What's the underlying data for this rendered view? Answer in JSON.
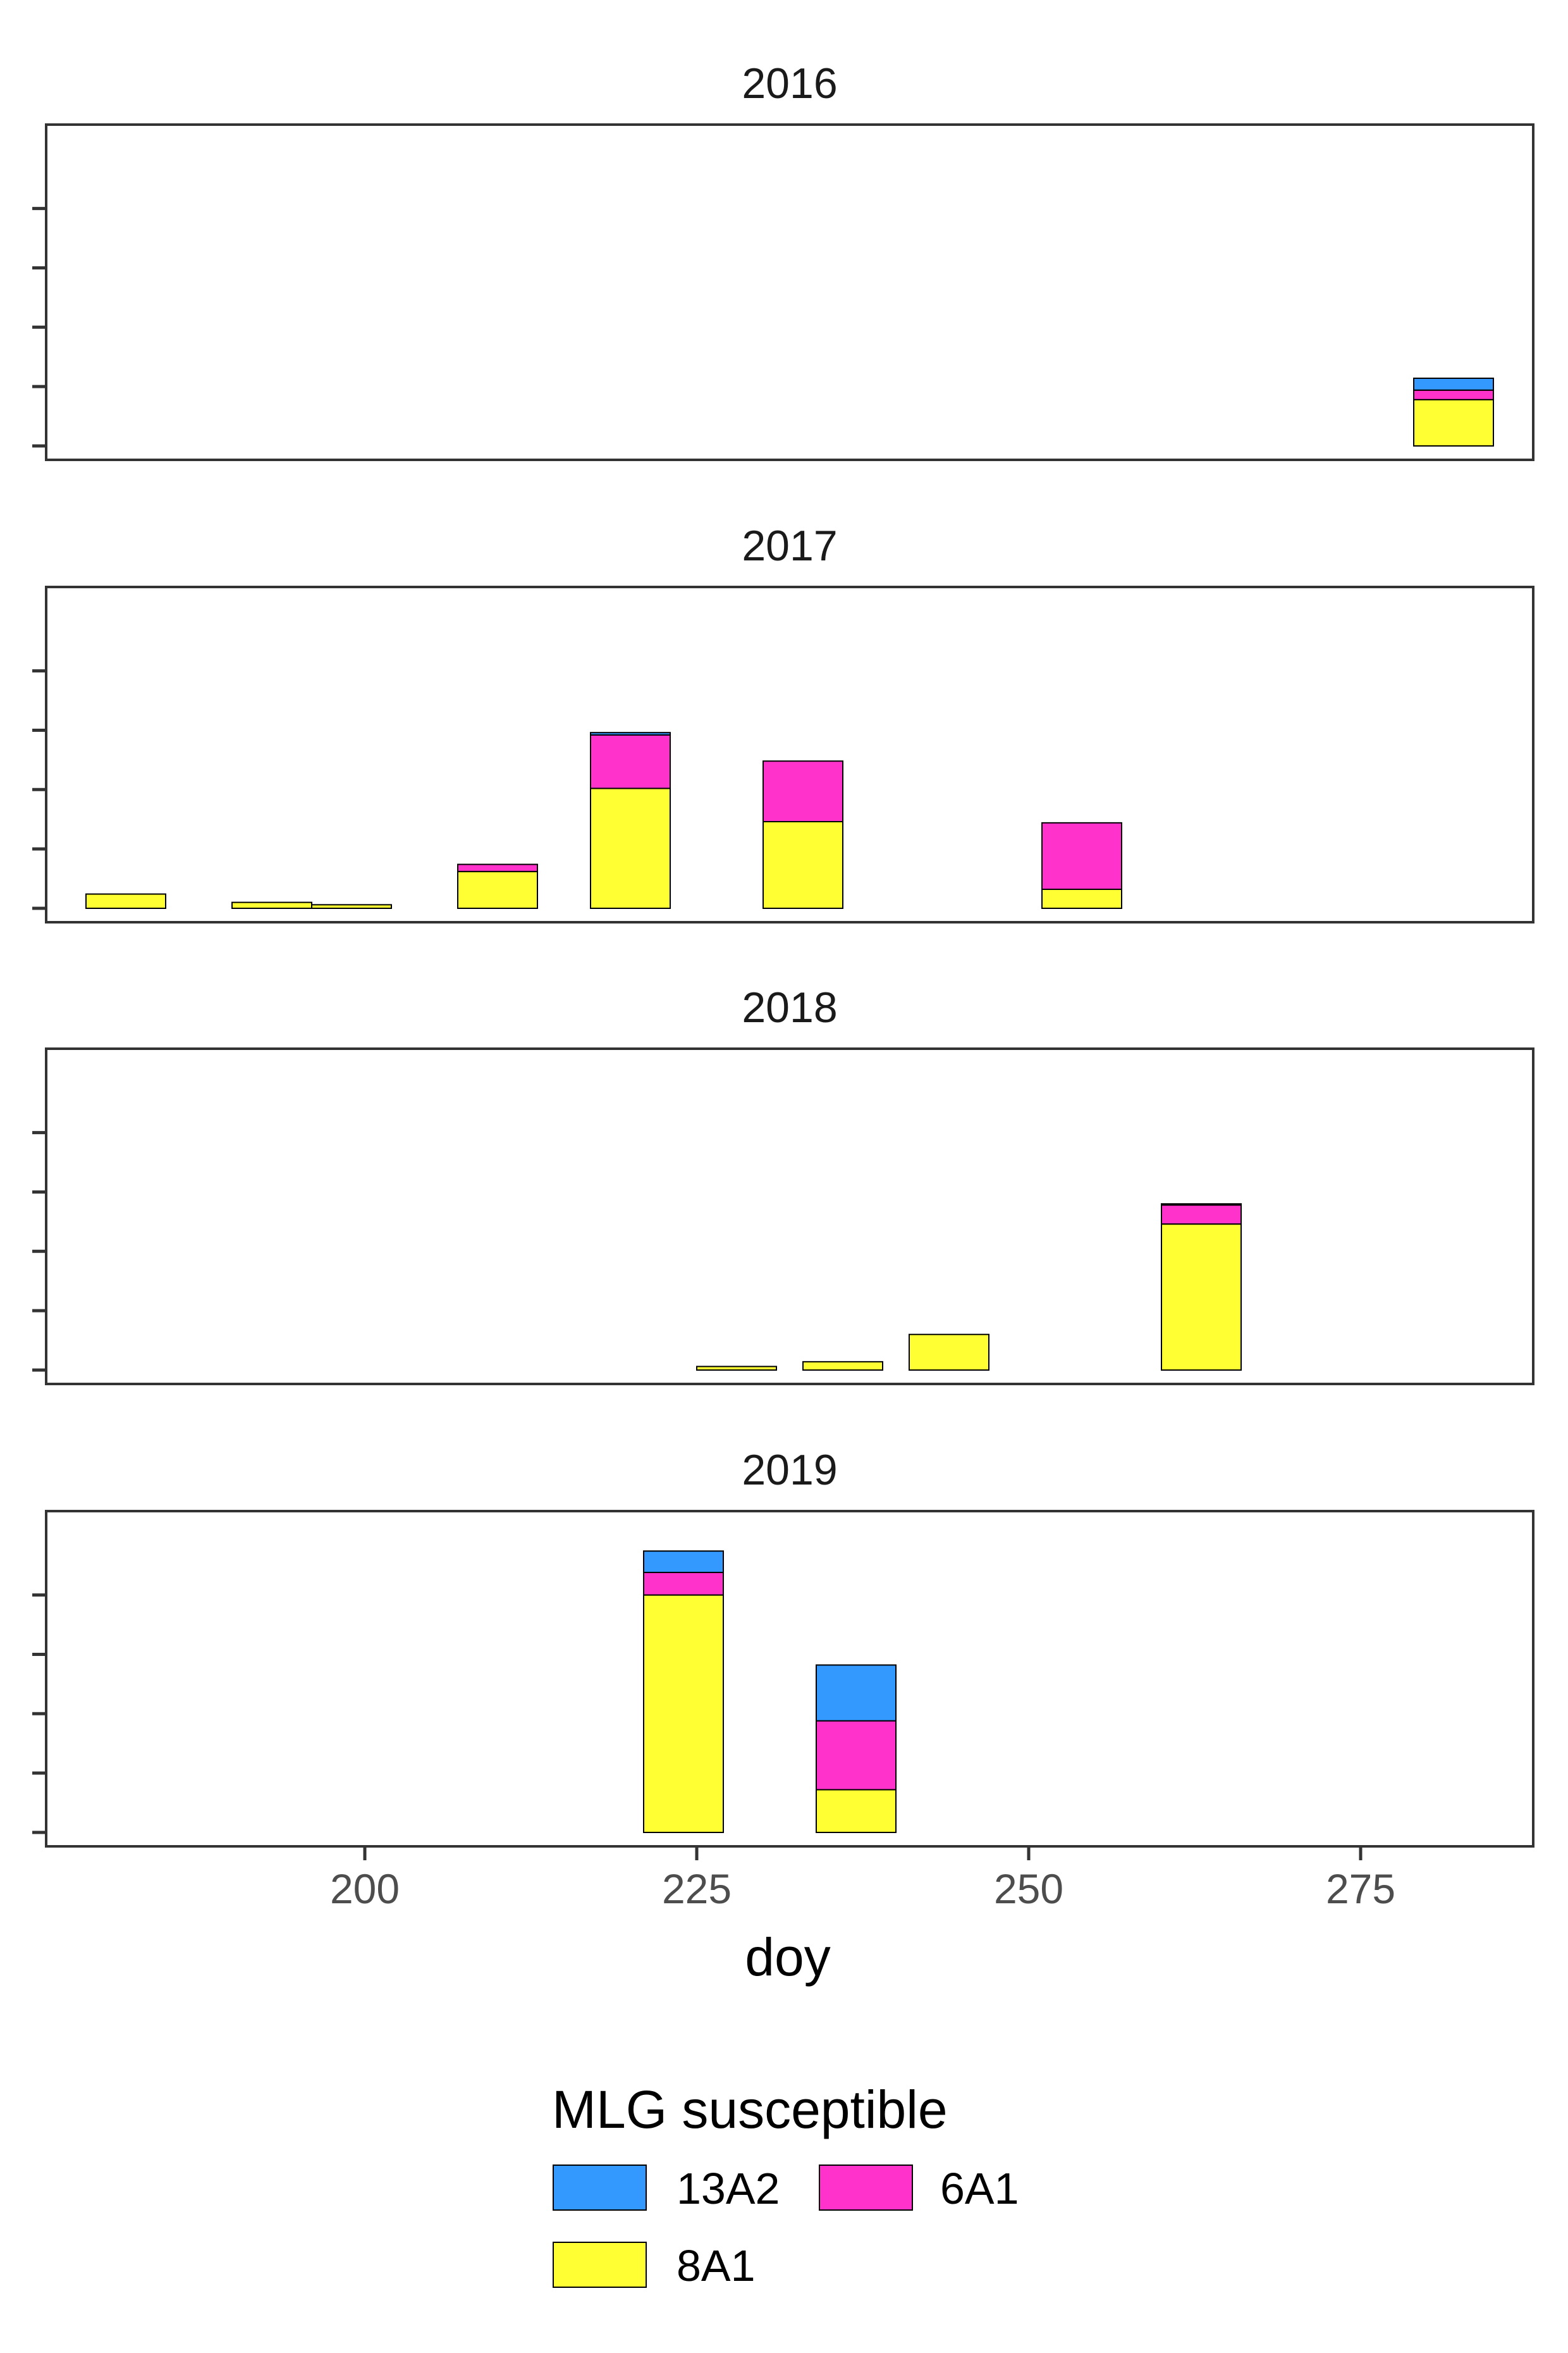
{
  "chart_data": {
    "type": "bar",
    "stacked": true,
    "facet_by": "year",
    "xlabel": "doy",
    "ylabel": "",
    "xlim": [
      176,
      288
    ],
    "xticks": [
      200,
      225,
      250,
      275
    ],
    "ylim": [
      0,
      5.2
    ],
    "y_tick_values": [
      0,
      1,
      2,
      3,
      4
    ],
    "y_tick_labels_visible": false,
    "grid": false,
    "legend": {
      "title": "MLG susceptible",
      "position": "bottom",
      "items": [
        {
          "key": "13A2",
          "label": "13A2",
          "color": "#3399FF"
        },
        {
          "key": "6A1",
          "label": "6A1",
          "color": "#FF33CC"
        },
        {
          "key": "8A1",
          "label": "8A1",
          "color": "#FFFF33"
        }
      ]
    },
    "stack_order": [
      "8A1",
      "6A1",
      "13A2"
    ],
    "panels": [
      {
        "title": "2016",
        "bars": [
          {
            "x": 282,
            "width": 6,
            "values": {
              "8A1": 0.78,
              "6A1": 0.16,
              "13A2": 0.2
            }
          }
        ]
      },
      {
        "title": "2017",
        "bars": [
          {
            "x": 182,
            "width": 6,
            "values": {
              "8A1": 0.24,
              "6A1": 0,
              "13A2": 0
            }
          },
          {
            "x": 193,
            "width": 6,
            "values": {
              "8A1": 0.1,
              "6A1": 0,
              "13A2": 0
            }
          },
          {
            "x": 199,
            "width": 6,
            "values": {
              "8A1": 0.06,
              "6A1": 0,
              "13A2": 0
            }
          },
          {
            "x": 210,
            "width": 6,
            "values": {
              "8A1": 0.62,
              "6A1": 0.12,
              "13A2": 0
            }
          },
          {
            "x": 220,
            "width": 6,
            "values": {
              "8A1": 2.02,
              "6A1": 0.9,
              "13A2": 0.04
            }
          },
          {
            "x": 233,
            "width": 6,
            "values": {
              "8A1": 1.46,
              "6A1": 1.02,
              "13A2": 0
            }
          },
          {
            "x": 254,
            "width": 6,
            "values": {
              "8A1": 0.32,
              "6A1": 1.12,
              "13A2": 0
            }
          }
        ]
      },
      {
        "title": "2018",
        "bars": [
          {
            "x": 228,
            "width": 6,
            "values": {
              "8A1": 0.06,
              "6A1": 0,
              "13A2": 0
            }
          },
          {
            "x": 236,
            "width": 6,
            "values": {
              "8A1": 0.14,
              "6A1": 0,
              "13A2": 0
            }
          },
          {
            "x": 244,
            "width": 6,
            "values": {
              "8A1": 0.6,
              "6A1": 0,
              "13A2": 0
            }
          },
          {
            "x": 263,
            "width": 6,
            "values": {
              "8A1": 2.46,
              "6A1": 0.32,
              "13A2": 0.02
            }
          }
        ]
      },
      {
        "title": "2019",
        "bars": [
          {
            "x": 224,
            "width": 6,
            "values": {
              "8A1": 4.0,
              "6A1": 0.38,
              "13A2": 0.36
            }
          },
          {
            "x": 237,
            "width": 6,
            "values": {
              "8A1": 0.72,
              "6A1": 1.16,
              "13A2": 0.94
            }
          }
        ]
      }
    ]
  }
}
